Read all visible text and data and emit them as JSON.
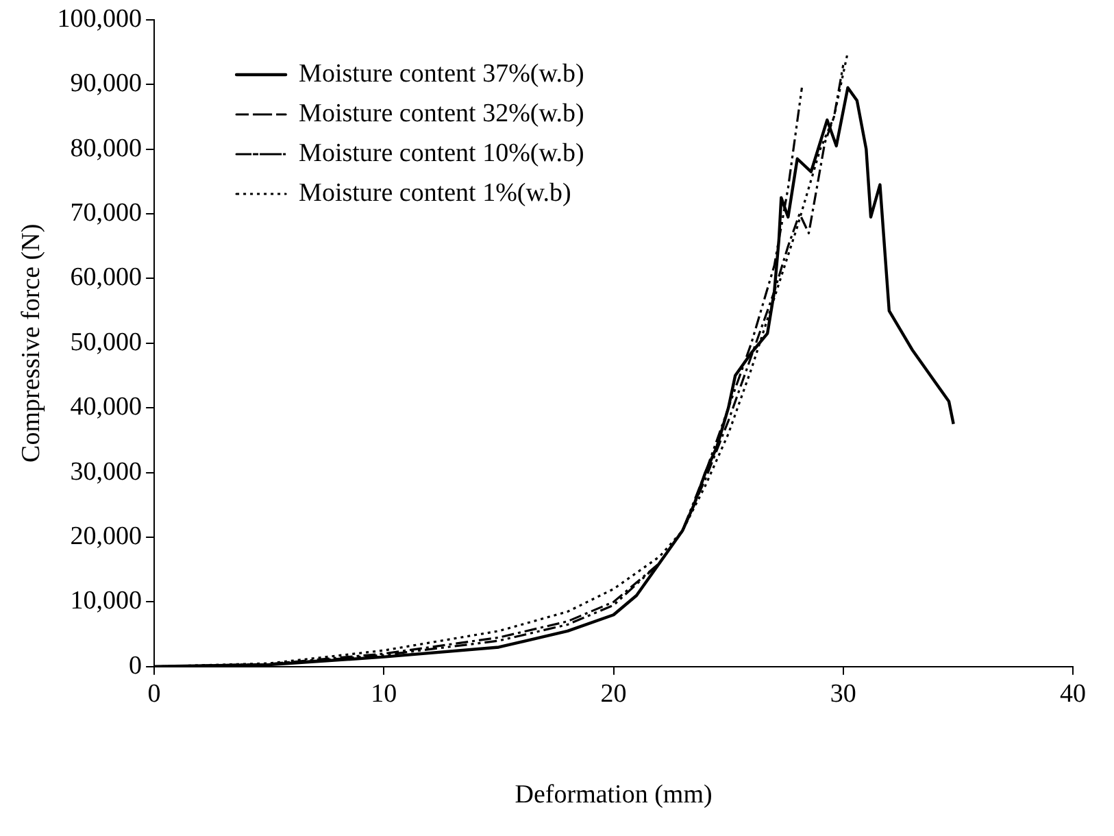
{
  "chart_data": {
    "type": "line",
    "xlabel": "Deformation (mm)",
    "ylabel": "Compressive force (N)",
    "xlim": [
      0,
      40
    ],
    "xticks": [
      0,
      10,
      20,
      30,
      40
    ],
    "ylim": [
      0,
      100000
    ],
    "yticks": [
      {
        "value": 0,
        "label": "0"
      },
      {
        "value": 10000,
        "label": "10,000"
      },
      {
        "value": 20000,
        "label": "20,000"
      },
      {
        "value": 30000,
        "label": "30,000"
      },
      {
        "value": 40000,
        "label": "40,000"
      },
      {
        "value": 50000,
        "label": "50,000"
      },
      {
        "value": 60000,
        "label": "60,000"
      },
      {
        "value": 70000,
        "label": "70,000"
      },
      {
        "value": 80000,
        "label": "80,000"
      },
      {
        "value": 90000,
        "label": "90,000"
      },
      {
        "value": 100000,
        "label": "100,000"
      }
    ],
    "grid": false,
    "legend": "top left",
    "marker": "none",
    "series": [
      {
        "name": "Moisture content 37%(w.b)",
        "color": "#000000",
        "line_style": "solid",
        "x": [
          0,
          5,
          10,
          15,
          18,
          20,
          21,
          22,
          23,
          23.5,
          24,
          24.5,
          25,
          25.3,
          26,
          26.7,
          27,
          27.2,
          27.3,
          27.6,
          28,
          28.6,
          29.3,
          29.7,
          30.2,
          30.6,
          31,
          31.2,
          31.6,
          32,
          32.5,
          33,
          34,
          34.6,
          34.8
        ],
        "values": [
          0,
          300,
          1500,
          3000,
          5500,
          8000,
          11000,
          16000,
          21000,
          25000,
          30000,
          34000,
          40000,
          45000,
          48500,
          51500,
          58000,
          66000,
          72500,
          69500,
          78500,
          76500,
          84500,
          80500,
          89500,
          87500,
          80000,
          69500,
          74500,
          55000,
          52000,
          49000,
          44000,
          41000,
          37500
        ]
      },
      {
        "name": "Moisture content 32%(w.b)",
        "color": "#000000",
        "line_style": "dashed",
        "x": [
          0,
          5,
          10,
          15,
          18,
          20,
          22,
          23,
          24,
          25,
          26,
          27,
          27.6,
          28.1,
          28.5,
          28.8,
          29.2,
          29.6,
          30
        ],
        "values": [
          0,
          400,
          2000,
          4500,
          7000,
          10000,
          16000,
          21000,
          29000,
          38000,
          48000,
          58000,
          65000,
          70000,
          67000,
          73000,
          81000,
          85000,
          93000
        ]
      },
      {
        "name": "Moisture content 10%(w.b)",
        "color": "#000000",
        "line_style": "dashed",
        "x": [
          0,
          5,
          10,
          15,
          18,
          20,
          22,
          23,
          24,
          25,
          26,
          27,
          27.6,
          28.2
        ],
        "values": [
          0,
          300,
          1800,
          4000,
          6500,
          9500,
          16000,
          21000,
          30000,
          40000,
          50000,
          62000,
          74000,
          89500
        ]
      },
      {
        "name": "Moisture content 1%(w.b)",
        "color": "#000000",
        "line_style": "dotted",
        "x": [
          0,
          5,
          10,
          15,
          18,
          20,
          22,
          23,
          24,
          25,
          26,
          27,
          28,
          29,
          29.6,
          30.2
        ],
        "values": [
          0,
          500,
          2500,
          5500,
          8500,
          12000,
          17000,
          21000,
          28000,
          36000,
          46000,
          57000,
          68000,
          80000,
          85000,
          95000
        ]
      }
    ]
  }
}
